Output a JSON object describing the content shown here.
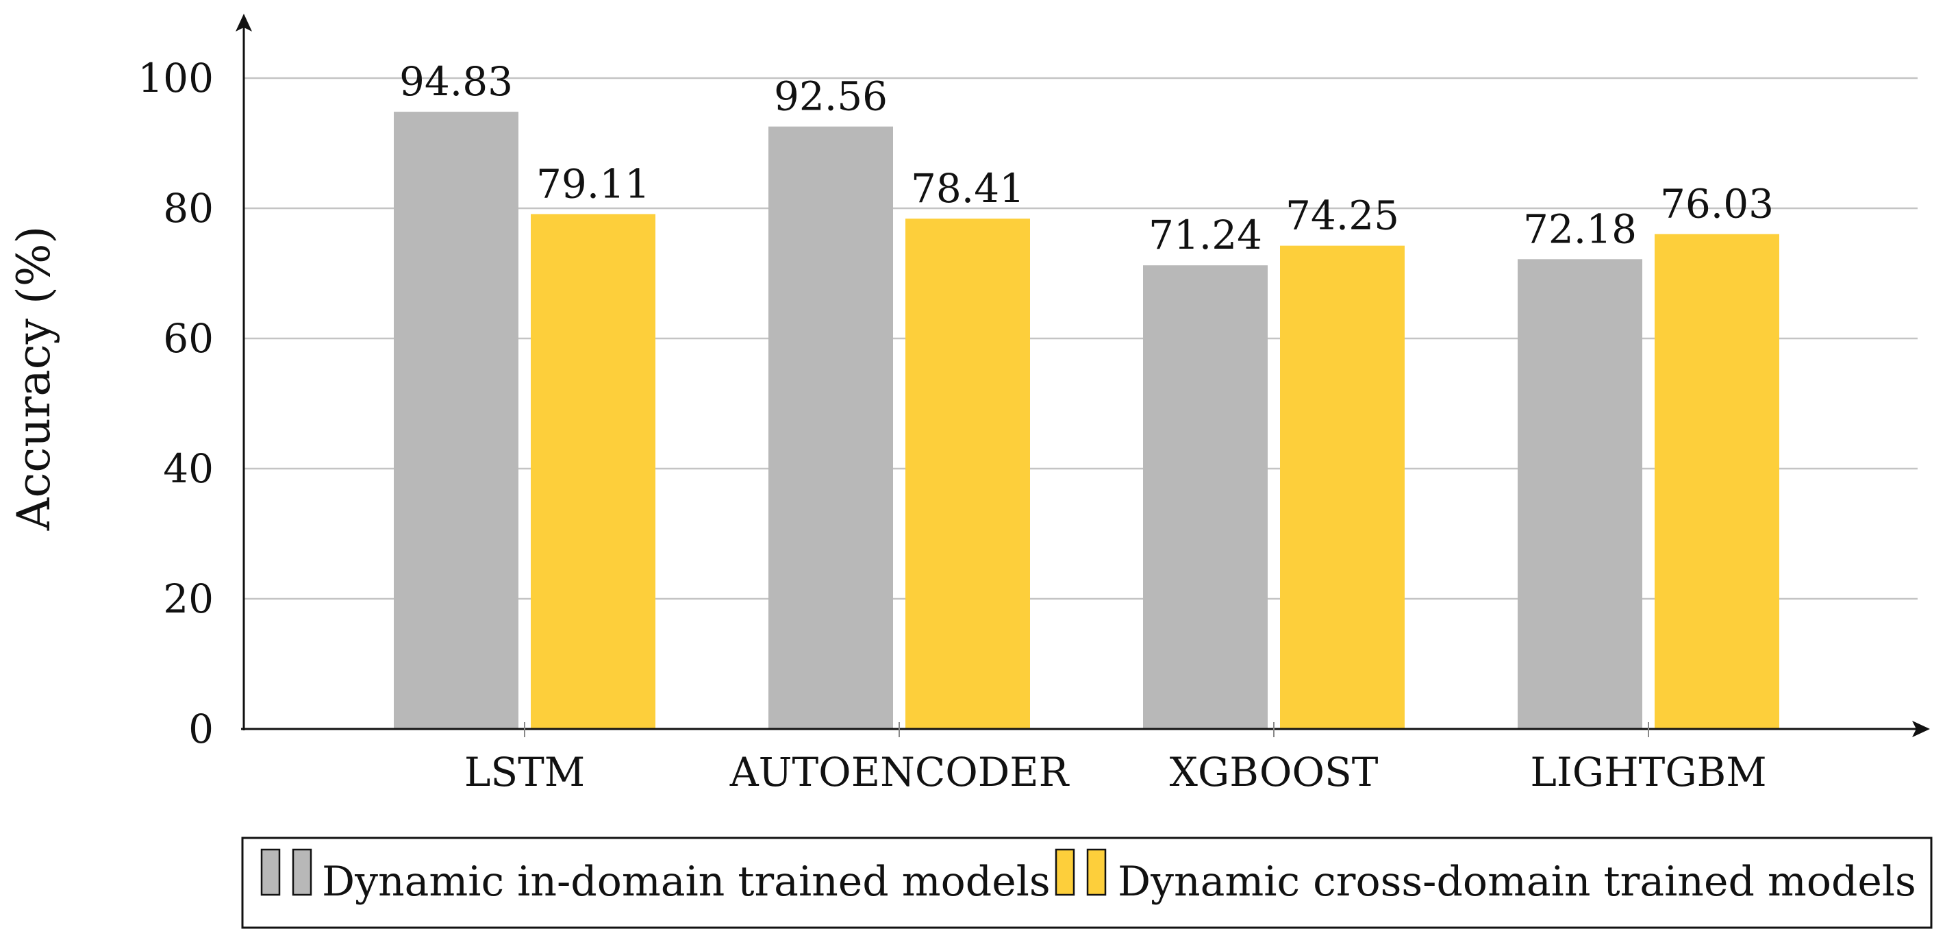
{
  "chart_data": {
    "type": "bar",
    "title": "",
    "xlabel": "",
    "ylabel": "Accuracy (%)",
    "ylim": [
      0,
      110
    ],
    "yticks": [
      0,
      20,
      40,
      60,
      80,
      100
    ],
    "grid": true,
    "categories": [
      "LSTM",
      "AUTOENCODER",
      "XGBOOST",
      "LIGHTGBM"
    ],
    "series": [
      {
        "name": "Dynamic in-domain trained models",
        "color": "#b8b8b8",
        "values": [
          94.83,
          92.56,
          71.24,
          72.18
        ]
      },
      {
        "name": "Dynamic cross-domain trained models",
        "color": "#fdcf3b",
        "values": [
          79.11,
          78.41,
          74.25,
          76.03
        ]
      }
    ],
    "legend_position": "bottom"
  }
}
